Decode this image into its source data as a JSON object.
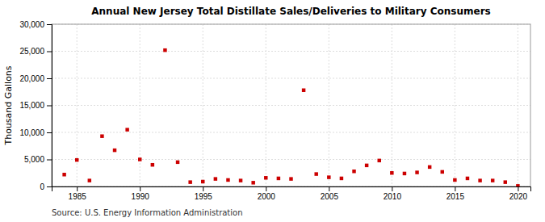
{
  "chart_data": {
    "type": "scatter",
    "title": "Annual New Jersey Total Distillate Sales/Deliveries to Military Consumers",
    "ylabel": "Thousand Gallons",
    "source": "Source: U.S. Energy Information Administration",
    "color": "#cc0000",
    "marker": "square",
    "grid": true,
    "x": [
      1984,
      1985,
      1986,
      1987,
      1988,
      1989,
      1990,
      1991,
      1992,
      1993,
      1994,
      1995,
      1996,
      1997,
      1998,
      1999,
      2000,
      2001,
      2002,
      2003,
      2004,
      2005,
      2006,
      2007,
      2008,
      2009,
      2010,
      2011,
      2012,
      2013,
      2014,
      2015,
      2016,
      2017,
      2018,
      2019,
      2020
    ],
    "values": [
      2200,
      4900,
      1100,
      9300,
      6700,
      10500,
      5000,
      4000,
      25200,
      4500,
      800,
      900,
      1400,
      1200,
      1100,
      700,
      1600,
      1500,
      1400,
      17800,
      2300,
      1700,
      1500,
      2800,
      3900,
      4800,
      2500,
      2400,
      2600,
      3600,
      2700,
      1200,
      1500,
      1100,
      1100,
      800,
      100
    ],
    "xlim": [
      1983,
      2021
    ],
    "xticks": [
      1985,
      1990,
      1995,
      2000,
      2005,
      2010,
      2015,
      2020
    ],
    "ylim": [
      0,
      30000
    ],
    "yticks": [
      0,
      {
        "value": 5000,
        "label": "5,000"
      },
      {
        "value": 10000,
        "label": "10,000"
      },
      {
        "value": 15000,
        "label": "15,000"
      },
      {
        "value": 20000,
        "label": "20,000"
      },
      {
        "value": 25000,
        "label": "25,000"
      },
      {
        "value": 30000,
        "label": "30,000"
      }
    ]
  }
}
